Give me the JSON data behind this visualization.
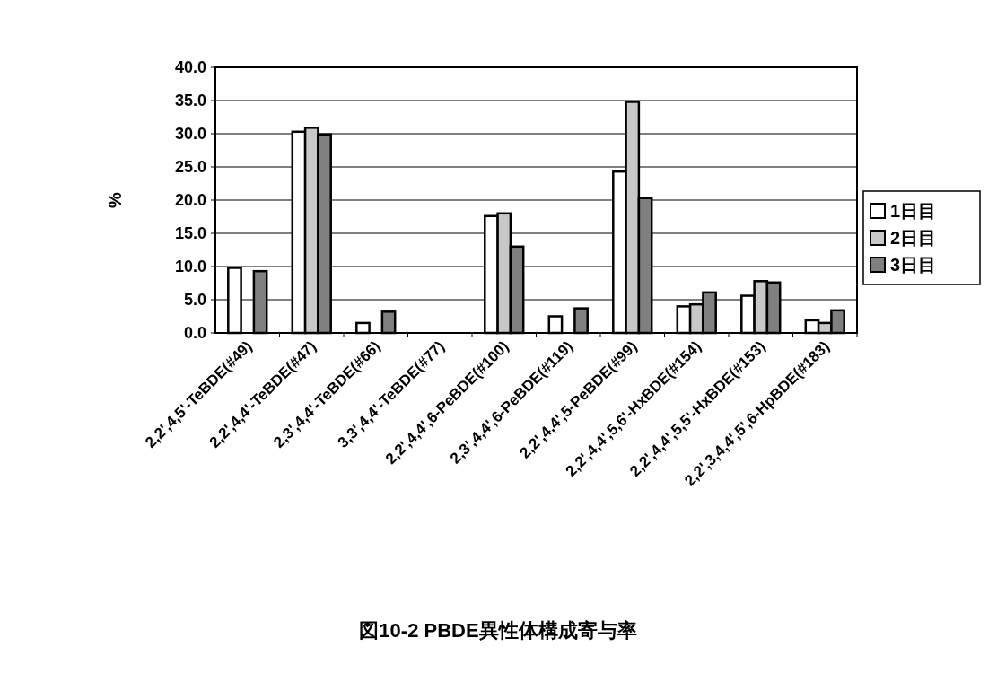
{
  "chart_data": {
    "type": "bar",
    "annotations": [
      "図10-2 PBDE異性体構成寄与率"
    ],
    "ylabel": "%",
    "categories": [
      "2,2',4,5'-TeBDE(#49)",
      "2,2',4,4'-TeBDE(#47)",
      "2,3',4,4'-TeBDE(#66)",
      "3,3',4,4'-TeBDE(#77)",
      "2,2',4,4',6-PeBDE(#100)",
      "2,3',4,4',6-PeBDE(#119)",
      "2,2',4,4',5-PeBDE(#99)",
      "2,2',4,4',5,6'-HxBDE(#154)",
      "2,2',4,4',5,5'-HxBDE(#153)",
      "2,2',3,4,4',5',6-HpBDE(#183)"
    ],
    "series": [
      {
        "name": "1日目",
        "color": "#ffffff",
        "values": [
          9.8,
          30.3,
          1.5,
          null,
          17.6,
          2.5,
          24.3,
          4.0,
          5.6,
          1.9
        ]
      },
      {
        "name": "2日目",
        "color": "#c8c8c8",
        "values": [
          null,
          30.9,
          null,
          null,
          18.0,
          null,
          34.8,
          4.3,
          7.8,
          1.5
        ]
      },
      {
        "name": "3日目",
        "color": "#808080",
        "values": [
          9.3,
          29.9,
          3.2,
          null,
          13.0,
          3.7,
          20.3,
          6.1,
          7.6,
          3.4
        ]
      }
    ],
    "ylim": [
      0,
      40
    ],
    "yticks": [
      {
        "value": 0,
        "label": "0.0"
      },
      {
        "value": 5,
        "label": "5.0"
      },
      {
        "value": 10,
        "label": "10.0"
      },
      {
        "value": 15,
        "label": "15.0"
      },
      {
        "value": 20,
        "label": "20.0"
      },
      {
        "value": 25,
        "label": "25.0"
      },
      {
        "value": 30,
        "label": "30.0"
      },
      {
        "value": 35,
        "label": "35.0"
      },
      {
        "value": 40,
        "label": "40.0"
      }
    ],
    "grid": "y",
    "legend": "right"
  }
}
